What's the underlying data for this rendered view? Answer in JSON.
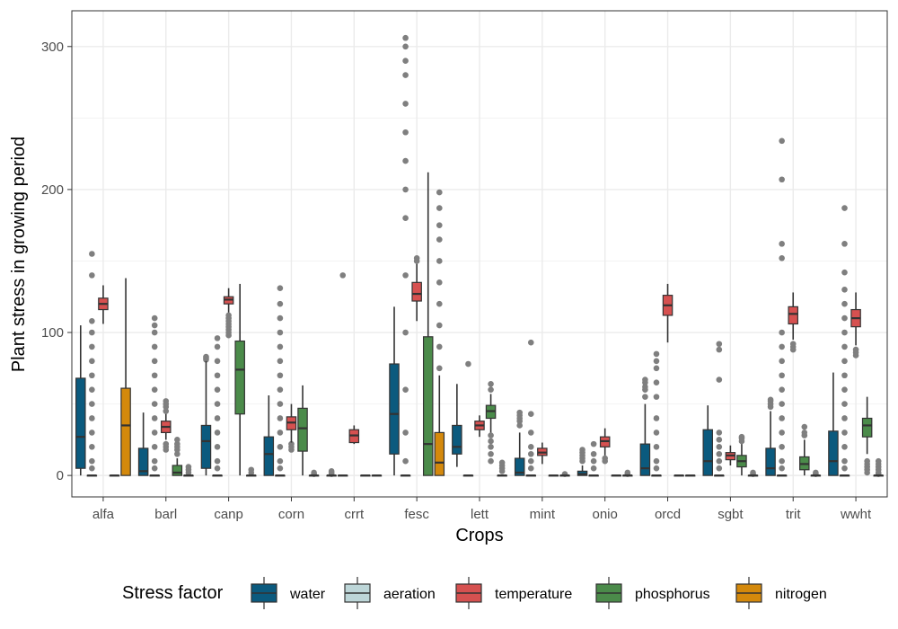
{
  "chart_data": {
    "type": "boxplot",
    "xlabel": "Crops",
    "ylabel": "Plant stress in growing period",
    "ylim": [
      -15,
      325
    ],
    "yticks": [
      0,
      100,
      200,
      300
    ],
    "grid": true,
    "legend": {
      "title": "Stress factor",
      "position": "bottom"
    },
    "categories": [
      "alfa",
      "barl",
      "canp",
      "corn",
      "crrt",
      "fesc",
      "lett",
      "mint",
      "onio",
      "orcd",
      "sgbt",
      "trit",
      "wwht"
    ],
    "series": [
      {
        "name": "water",
        "color": "#0b5a7e",
        "boxes": [
          {
            "q1": 5,
            "median": 27,
            "q3": 68,
            "lo": 0,
            "hi": 105,
            "outliers": []
          },
          {
            "q1": 0,
            "median": 3,
            "q3": 19,
            "lo": 0,
            "hi": 44,
            "outliers": []
          },
          {
            "q1": 5,
            "median": 24,
            "q3": 35,
            "lo": 0,
            "hi": 80,
            "outliers": [
              81,
              82,
              83
            ]
          },
          {
            "q1": 0,
            "median": 15,
            "q3": 27,
            "lo": 0,
            "hi": 56,
            "outliers": []
          },
          {
            "q1": 0,
            "median": 0,
            "q3": 0,
            "lo": 0,
            "hi": 0,
            "outliers": [
              1,
              2,
              3
            ]
          },
          {
            "q1": 15,
            "median": 43,
            "q3": 78,
            "lo": 0,
            "hi": 118,
            "outliers": []
          },
          {
            "q1": 15,
            "median": 20,
            "q3": 35,
            "lo": 6,
            "hi": 64,
            "outliers": []
          },
          {
            "q1": 0,
            "median": 2,
            "q3": 12,
            "lo": 0,
            "hi": 30,
            "outliers": [
              35,
              38,
              40,
              42,
              44
            ]
          },
          {
            "q1": 0,
            "median": 1,
            "q3": 3,
            "lo": 0,
            "hi": 7,
            "outliers": [
              10,
              12,
              14,
              16,
              18
            ]
          },
          {
            "q1": 0,
            "median": 5,
            "q3": 22,
            "lo": 0,
            "hi": 50,
            "outliers": [
              55,
              60,
              62,
              65,
              67
            ]
          },
          {
            "q1": 0,
            "median": 10,
            "q3": 32,
            "lo": 0,
            "hi": 49,
            "outliers": []
          },
          {
            "q1": 0,
            "median": 5,
            "q3": 19,
            "lo": 0,
            "hi": 45,
            "outliers": [
              48,
              50,
              52,
              53
            ]
          },
          {
            "q1": 0,
            "median": 10,
            "q3": 31,
            "lo": 0,
            "hi": 72,
            "outliers": []
          }
        ]
      },
      {
        "name": "aeration",
        "color": "#bdd6d8",
        "boxes": [
          {
            "q1": 0,
            "median": 0,
            "q3": 0,
            "lo": 0,
            "hi": 0,
            "outliers": [
              5,
              10,
              20,
              30,
              40,
              50,
              60,
              70,
              80,
              90,
              100,
              108,
              140,
              155
            ]
          },
          {
            "q1": 0,
            "median": 0,
            "q3": 0,
            "lo": 0,
            "hi": 0,
            "outliers": [
              5,
              10,
              20,
              30,
              40,
              50,
              60,
              70,
              80,
              90,
              100,
              105,
              110
            ]
          },
          {
            "q1": 0,
            "median": 0,
            "q3": 0,
            "lo": 0,
            "hi": 0,
            "outliers": [
              5,
              10,
              20,
              30,
              40,
              50,
              60,
              70,
              80,
              90,
              96
            ]
          },
          {
            "q1": 0,
            "median": 0,
            "q3": 0,
            "lo": 0,
            "hi": 0,
            "outliers": [
              5,
              10,
              20,
              30,
              40,
              50,
              60,
              70,
              80,
              90,
              100,
              110,
              120,
              131
            ]
          },
          {
            "q1": 0,
            "median": 0,
            "q3": 0,
            "lo": 0,
            "hi": 0,
            "outliers": [
              140
            ]
          },
          {
            "q1": 0,
            "median": 0,
            "q3": 0,
            "lo": 0,
            "hi": 0,
            "outliers": [
              10,
              30,
              60,
              100,
              140,
              180,
              200,
              220,
              240,
              260,
              280,
              290,
              300,
              306
            ]
          },
          {
            "q1": 0,
            "median": 0,
            "q3": 0,
            "lo": 0,
            "hi": 0,
            "outliers": [
              78
            ]
          },
          {
            "q1": 0,
            "median": 0,
            "q3": 0,
            "lo": 0,
            "hi": 0,
            "outliers": [
              5,
              10,
              15,
              20,
              30,
              43,
              93
            ]
          },
          {
            "q1": 0,
            "median": 0,
            "q3": 0,
            "lo": 0,
            "hi": 0,
            "outliers": [
              5,
              10,
              15,
              22
            ]
          },
          {
            "q1": 0,
            "median": 0,
            "q3": 0,
            "lo": 0,
            "hi": 0,
            "outliers": [
              5,
              10,
              20,
              30,
              40,
              55,
              65,
              75,
              80,
              85
            ]
          },
          {
            "q1": 0,
            "median": 0,
            "q3": 0,
            "lo": 0,
            "hi": 0,
            "outliers": [
              5,
              10,
              15,
              20,
              25,
              30,
              67,
              88,
              92
            ]
          },
          {
            "q1": 0,
            "median": 0,
            "q3": 0,
            "lo": 0,
            "hi": 0,
            "outliers": [
              5,
              10,
              20,
              30,
              40,
              50,
              60,
              70,
              80,
              90,
              100,
              152,
              162,
              207,
              234
            ]
          },
          {
            "q1": 0,
            "median": 0,
            "q3": 0,
            "lo": 0,
            "hi": 0,
            "outliers": [
              5,
              10,
              20,
              30,
              40,
              50,
              60,
              70,
              80,
              90,
              100,
              110,
              120,
              130,
              142,
              162,
              187
            ]
          }
        ]
      },
      {
        "name": "temperature",
        "color": "#d65150",
        "boxes": [
          {
            "q1": 116,
            "median": 120,
            "q3": 124,
            "lo": 106,
            "hi": 133,
            "outliers": []
          },
          {
            "q1": 30,
            "median": 34,
            "q3": 38,
            "lo": 25,
            "hi": 43,
            "outliers": [
              18,
              20,
              22,
              45,
              48,
              50,
              52
            ]
          },
          {
            "q1": 120,
            "median": 123,
            "q3": 125,
            "lo": 114,
            "hi": 131,
            "outliers": [
              98,
              100,
              102,
              104,
              106,
              108,
              110,
              112
            ]
          },
          {
            "q1": 32,
            "median": 37,
            "q3": 41,
            "lo": 23,
            "hi": 50,
            "outliers": [
              18,
              20,
              22
            ]
          },
          {
            "q1": 23,
            "median": 28,
            "q3": 32,
            "lo": 22,
            "hi": 35,
            "outliers": []
          },
          {
            "q1": 122,
            "median": 127,
            "q3": 135,
            "lo": 108,
            "hi": 148,
            "outliers": [
              150,
              152
            ]
          },
          {
            "q1": 32,
            "median": 35,
            "q3": 38,
            "lo": 27,
            "hi": 42,
            "outliers": []
          },
          {
            "q1": 14,
            "median": 16,
            "q3": 19,
            "lo": 8,
            "hi": 23,
            "outliers": []
          },
          {
            "q1": 20,
            "median": 24,
            "q3": 27,
            "lo": 14,
            "hi": 33,
            "outliers": [
              10,
              12
            ]
          },
          {
            "q1": 112,
            "median": 119,
            "q3": 126,
            "lo": 93,
            "hi": 134,
            "outliers": []
          },
          {
            "q1": 11,
            "median": 14,
            "q3": 16,
            "lo": 7,
            "hi": 21,
            "outliers": []
          },
          {
            "q1": 106,
            "median": 113,
            "q3": 118,
            "lo": 95,
            "hi": 128,
            "outliers": [
              88,
              90,
              92
            ]
          },
          {
            "q1": 104,
            "median": 110,
            "q3": 116,
            "lo": 91,
            "hi": 128,
            "outliers": [
              84,
              86,
              88
            ]
          }
        ]
      },
      {
        "name": "phosphorus",
        "color": "#4b8b4a",
        "boxes": [
          {
            "q1": 0,
            "median": 0,
            "q3": 0,
            "lo": 0,
            "hi": 0,
            "outliers": []
          },
          {
            "q1": 0,
            "median": 2,
            "q3": 7,
            "lo": 0,
            "hi": 12,
            "outliers": [
              15,
              18,
              20,
              22,
              25
            ]
          },
          {
            "q1": 43,
            "median": 74,
            "q3": 94,
            "lo": 0,
            "hi": 134,
            "outliers": []
          },
          {
            "q1": 17,
            "median": 33,
            "q3": 47,
            "lo": 0,
            "hi": 63,
            "outliers": []
          },
          {
            "q1": 0,
            "median": 0,
            "q3": 0,
            "lo": 0,
            "hi": 0,
            "outliers": []
          },
          {
            "q1": 0,
            "median": 22,
            "q3": 97,
            "lo": 0,
            "hi": 212,
            "outliers": []
          },
          {
            "q1": 40,
            "median": 45,
            "q3": 49,
            "lo": 30,
            "hi": 57,
            "outliers": [
              10,
              15,
              20,
              24,
              28,
              60,
              64
            ]
          },
          {
            "q1": 0,
            "median": 0,
            "q3": 0,
            "lo": 0,
            "hi": 0,
            "outliers": []
          },
          {
            "q1": 0,
            "median": 0,
            "q3": 0,
            "lo": 0,
            "hi": 0,
            "outliers": []
          },
          {
            "q1": 0,
            "median": 0,
            "q3": 0,
            "lo": 0,
            "hi": 0,
            "outliers": []
          },
          {
            "q1": 6,
            "median": 10,
            "q3": 14,
            "lo": 0,
            "hi": 22,
            "outliers": [
              24,
              26,
              27
            ]
          },
          {
            "q1": 4,
            "median": 8,
            "q3": 13,
            "lo": 0,
            "hi": 25,
            "outliers": [
              28,
              30,
              34
            ]
          },
          {
            "q1": 27,
            "median": 35,
            "q3": 40,
            "lo": 15,
            "hi": 55,
            "outliers": [
              2,
              4,
              6,
              8,
              10
            ]
          }
        ]
      },
      {
        "name": "nitrogen",
        "color": "#d4890c",
        "boxes": [
          {
            "q1": 0,
            "median": 35,
            "q3": 61,
            "lo": 0,
            "hi": 138,
            "outliers": []
          },
          {
            "q1": 0,
            "median": 0,
            "q3": 0,
            "lo": 0,
            "hi": 0,
            "outliers": [
              2,
              4,
              6
            ]
          },
          {
            "q1": 0,
            "median": 0,
            "q3": 0,
            "lo": 0,
            "hi": 0,
            "outliers": [
              2,
              4
            ]
          },
          {
            "q1": 0,
            "median": 0,
            "q3": 0,
            "lo": 0,
            "hi": 0,
            "outliers": [
              1,
              2
            ]
          },
          {
            "q1": 0,
            "median": 0,
            "q3": 0,
            "lo": 0,
            "hi": 0,
            "outliers": []
          },
          {
            "q1": 0,
            "median": 9,
            "q3": 30,
            "lo": 0,
            "hi": 70,
            "outliers": [
              75,
              90,
              105,
              120,
              135,
              150,
              165,
              175,
              187,
              198
            ]
          },
          {
            "q1": 0,
            "median": 0,
            "q3": 0,
            "lo": 0,
            "hi": 0,
            "outliers": [
              3,
              5,
              7,
              9
            ]
          },
          {
            "q1": 0,
            "median": 0,
            "q3": 0,
            "lo": 0,
            "hi": 0,
            "outliers": [
              1
            ]
          },
          {
            "q1": 0,
            "median": 0,
            "q3": 0,
            "lo": 0,
            "hi": 0,
            "outliers": [
              1,
              2
            ]
          },
          {
            "q1": 0,
            "median": 0,
            "q3": 0,
            "lo": 0,
            "hi": 0,
            "outliers": []
          },
          {
            "q1": 0,
            "median": 0,
            "q3": 0,
            "lo": 0,
            "hi": 0,
            "outliers": [
              1,
              2
            ]
          },
          {
            "q1": 0,
            "median": 0,
            "q3": 0,
            "lo": 0,
            "hi": 0,
            "outliers": [
              1,
              2
            ]
          },
          {
            "q1": 0,
            "median": 0,
            "q3": 0,
            "lo": 0,
            "hi": 0,
            "outliers": [
              1,
              2,
              4,
              6,
              8,
              10
            ]
          }
        ]
      }
    ]
  }
}
